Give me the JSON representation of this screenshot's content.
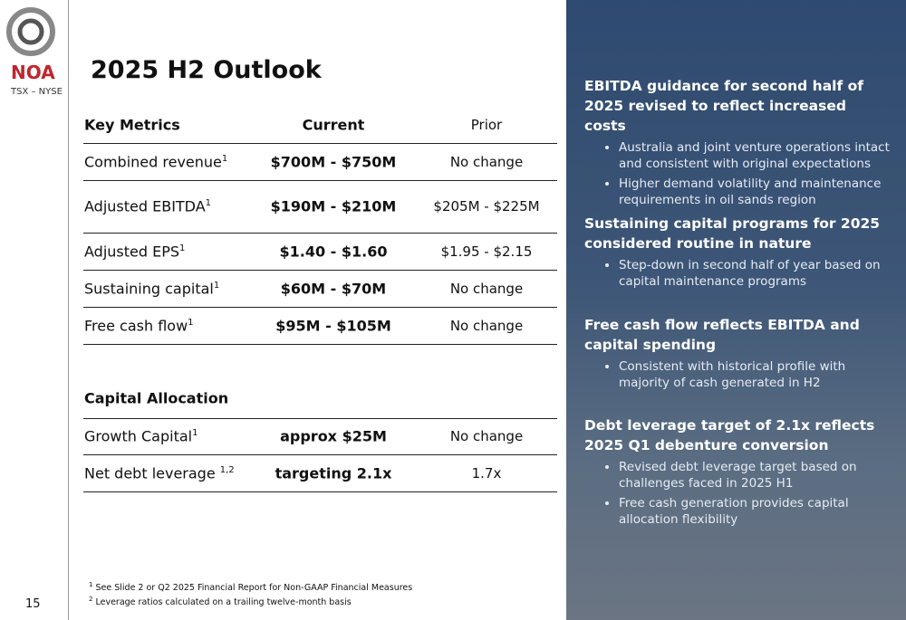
{
  "logo": {
    "name": "NOA",
    "exchanges": "TSX – NYSE"
  },
  "page_number": "15",
  "title": "2025 H2 Outlook",
  "table": {
    "header": [
      "Key Metrics",
      "Current",
      "Prior"
    ],
    "rows": [
      {
        "label": "Combined revenue",
        "sup": "1",
        "current": "$700M - $750M",
        "prior": "No change"
      },
      {
        "label": "Adjusted EBITDA",
        "sup": "1",
        "current": "$190M - $210M",
        "prior": "$205M - $225M"
      },
      {
        "label": "Adjusted EPS",
        "sup": "1",
        "current": "$1.40 - $1.60",
        "prior": "$1.95 - $2.15"
      },
      {
        "label": "Sustaining capital",
        "sup": "1",
        "current": "$60M - $70M",
        "prior": "No change"
      },
      {
        "label": "Free cash flow",
        "sup": "1",
        "current": "$95M - $105M",
        "prior": "No change"
      }
    ],
    "section_title": "Capital Allocation",
    "section_rows": [
      {
        "label": "Growth Capital",
        "sup": "1",
        "current": "approx $25M",
        "prior": "No change"
      },
      {
        "label": "Net debt leverage ",
        "sup": "1,2",
        "current": "targeting 2.1x",
        "prior": "1.7x"
      }
    ]
  },
  "footnotes": [
    {
      "mark": "1",
      "text": " See Slide 2 or Q2 2025 Financial Report for Non-GAAP Financial Measures"
    },
    {
      "mark": "2",
      "text": " Leverage ratios calculated on a trailing twelve-month basis"
    }
  ],
  "sidebar": [
    {
      "heading": "EBITDA guidance for second half of 2025 revised to reflect increased costs",
      "bullets": [
        "Australia and joint venture operations intact and consistent with original expectations",
        "Higher demand volatility and maintenance requirements in oil sands region"
      ]
    },
    {
      "heading": "Sustaining capital programs for 2025 considered routine in nature",
      "bullets": [
        "Step-down in second half of year based on capital maintenance programs"
      ]
    },
    {
      "heading": "Free cash flow reflects EBITDA and capital spending",
      "bullets": [
        "Consistent with historical profile with majority of cash generated in H2"
      ]
    },
    {
      "heading": "Debt leverage target of 2.1x reflects 2025 Q1 debenture conversion",
      "bullets": [
        "Revised debt leverage target based on challenges faced in 2025 H1",
        "Free cash generation provides capital allocation flexibility"
      ]
    }
  ]
}
